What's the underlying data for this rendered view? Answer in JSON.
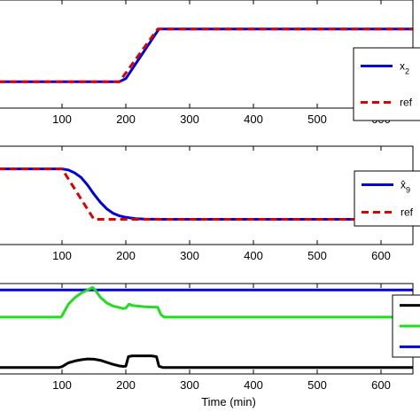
{
  "chart_data": [
    {
      "type": "line",
      "xlim": [
        0,
        650
      ],
      "xticks": [
        "100",
        "200",
        "300",
        "400",
        "500",
        "600"
      ],
      "xtick_values": [
        100,
        200,
        300,
        400,
        500,
        600
      ],
      "xlabel": "",
      "legend_position": "right",
      "series": [
        {
          "name": "x",
          "name_sub": "2",
          "color": "#0000dd",
          "style": "solid",
          "x": [
            0,
            100,
            190,
            200,
            252,
            300,
            400,
            500,
            650
          ],
          "y": [
            0,
            0,
            0,
            0.06,
            1,
            1,
            1,
            1,
            1
          ]
        },
        {
          "name": "ref",
          "color": "#dd0000",
          "style": "dashed",
          "x": [
            0,
            100,
            190,
            250,
            300,
            400,
            500,
            650
          ],
          "y": [
            0,
            0,
            0,
            1,
            1,
            1,
            1,
            1
          ]
        }
      ]
    },
    {
      "type": "line",
      "xlim": [
        0,
        650
      ],
      "xticks": [
        "100",
        "200",
        "300",
        "400",
        "500",
        "600"
      ],
      "xtick_values": [
        100,
        200,
        300,
        400,
        500,
        600
      ],
      "xlabel": "",
      "legend_position": "right",
      "series": [
        {
          "name": "x̂",
          "name_sub": "9",
          "color": "#0000dd",
          "style": "solid",
          "x": [
            0,
            100,
            110,
            120,
            130,
            140,
            150,
            160,
            170,
            180,
            190,
            200,
            215,
            230,
            260,
            300,
            400,
            500,
            650
          ],
          "y": [
            1,
            1,
            0.98,
            0.92,
            0.83,
            0.68,
            0.5,
            0.34,
            0.21,
            0.12,
            0.07,
            0.04,
            0.015,
            0.005,
            0,
            0,
            0,
            0,
            0
          ]
        },
        {
          "name": "ref",
          "color": "#dd0000",
          "style": "dashed",
          "x": [
            0,
            90,
            100,
            150,
            300,
            400,
            500,
            650
          ],
          "y": [
            1,
            1,
            1,
            0,
            0,
            0,
            0,
            0
          ]
        }
      ]
    },
    {
      "type": "line",
      "xlim": [
        0,
        650
      ],
      "xticks": [
        "100",
        "200",
        "300",
        "400",
        "500",
        "600"
      ],
      "xtick_values": [
        100,
        200,
        300,
        400,
        500,
        600
      ],
      "xlabel": "Time (min)",
      "legend_position": "right",
      "series": [
        {
          "color": "#0000dd",
          "style": "solid",
          "x": [
            0,
            650
          ],
          "y": [
            3.0,
            3.0
          ]
        },
        {
          "color": "#22dd22",
          "style": "solid",
          "x": [
            0,
            98,
            100,
            110,
            120,
            130,
            140,
            148,
            152,
            160,
            170,
            180,
            190,
            196,
            200,
            205,
            210,
            230,
            250,
            255,
            260,
            300,
            400,
            500,
            650
          ],
          "y": [
            1.95,
            1.95,
            2.0,
            2.45,
            2.7,
            2.88,
            3.0,
            3.1,
            3.0,
            2.72,
            2.5,
            2.38,
            2.32,
            2.28,
            2.3,
            2.45,
            2.4,
            2.35,
            2.33,
            2.05,
            1.95,
            1.95,
            1.95,
            1.95,
            1.95
          ]
        },
        {
          "color": "#000000",
          "style": "solid",
          "x": [
            0,
            95,
            100,
            110,
            120,
            130,
            140,
            150,
            160,
            170,
            180,
            190,
            196,
            200,
            204,
            210,
            240,
            248,
            252,
            258,
            300,
            400,
            500,
            650
          ],
          "y": [
            0.0,
            0.0,
            0.03,
            0.18,
            0.25,
            0.3,
            0.33,
            0.32,
            0.28,
            0.2,
            0.12,
            0.06,
            0.04,
            0.05,
            0.42,
            0.45,
            0.45,
            0.42,
            0.05,
            0.0,
            0.0,
            0.0,
            0.0,
            0.0
          ]
        }
      ]
    }
  ]
}
